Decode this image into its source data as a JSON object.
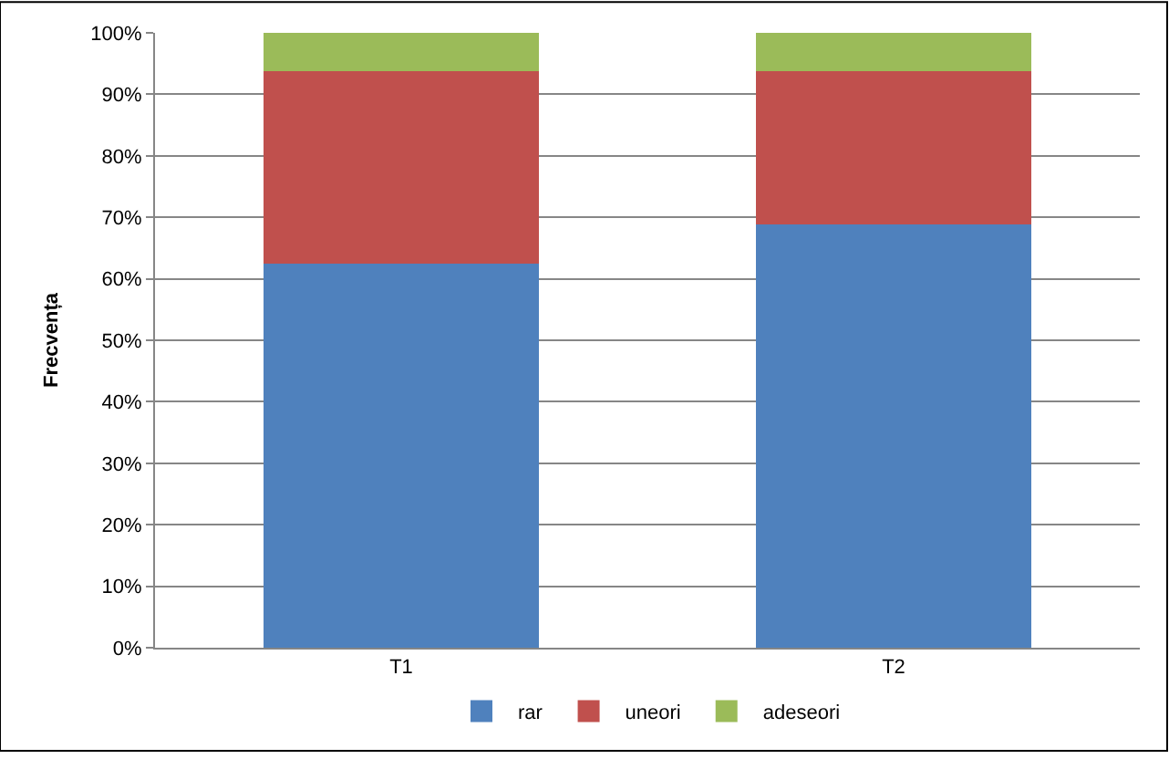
{
  "chart_data": {
    "type": "bar",
    "stacked": true,
    "categories": [
      "T1",
      "T2"
    ],
    "ylabel": "Frecvența",
    "series": [
      {
        "name": "rar",
        "color": "#4f81bd",
        "values": [
          62.5,
          68.8
        ]
      },
      {
        "name": "uneori",
        "color": "#c0504d",
        "values": [
          31.3,
          25
        ]
      },
      {
        "name": "adeseori",
        "color": "#9bbb59",
        "values": [
          6.2,
          6.2
        ]
      }
    ],
    "ylim": [
      0,
      100
    ],
    "yticks": [
      {
        "value": 0,
        "label": "0%"
      },
      {
        "value": 10,
        "label": "10%"
      },
      {
        "value": 20,
        "label": "20%"
      },
      {
        "value": 30,
        "label": "30%"
      },
      {
        "value": 40,
        "label": "40%"
      },
      {
        "value": 50,
        "label": "50%"
      },
      {
        "value": 60,
        "label": "60%"
      },
      {
        "value": 70,
        "label": "70%"
      },
      {
        "value": 80,
        "label": "80%"
      },
      {
        "value": 90,
        "label": "90%"
      },
      {
        "value": 100,
        "label": "100%"
      }
    ],
    "grid": "y",
    "legend": "bottom"
  }
}
